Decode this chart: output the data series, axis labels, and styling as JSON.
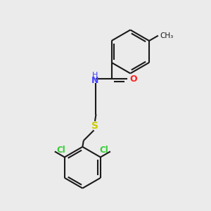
{
  "bg_color": "#ebebeb",
  "bond_color": "#1a1a1a",
  "N_color": "#4040ff",
  "O_color": "#ff2020",
  "S_color": "#cccc00",
  "Cl_color": "#33cc33",
  "lw": 1.5,
  "fig_w": 3.0,
  "fig_h": 3.0,
  "dpi": 100,
  "xlim": [
    0,
    10
  ],
  "ylim": [
    0,
    10
  ]
}
